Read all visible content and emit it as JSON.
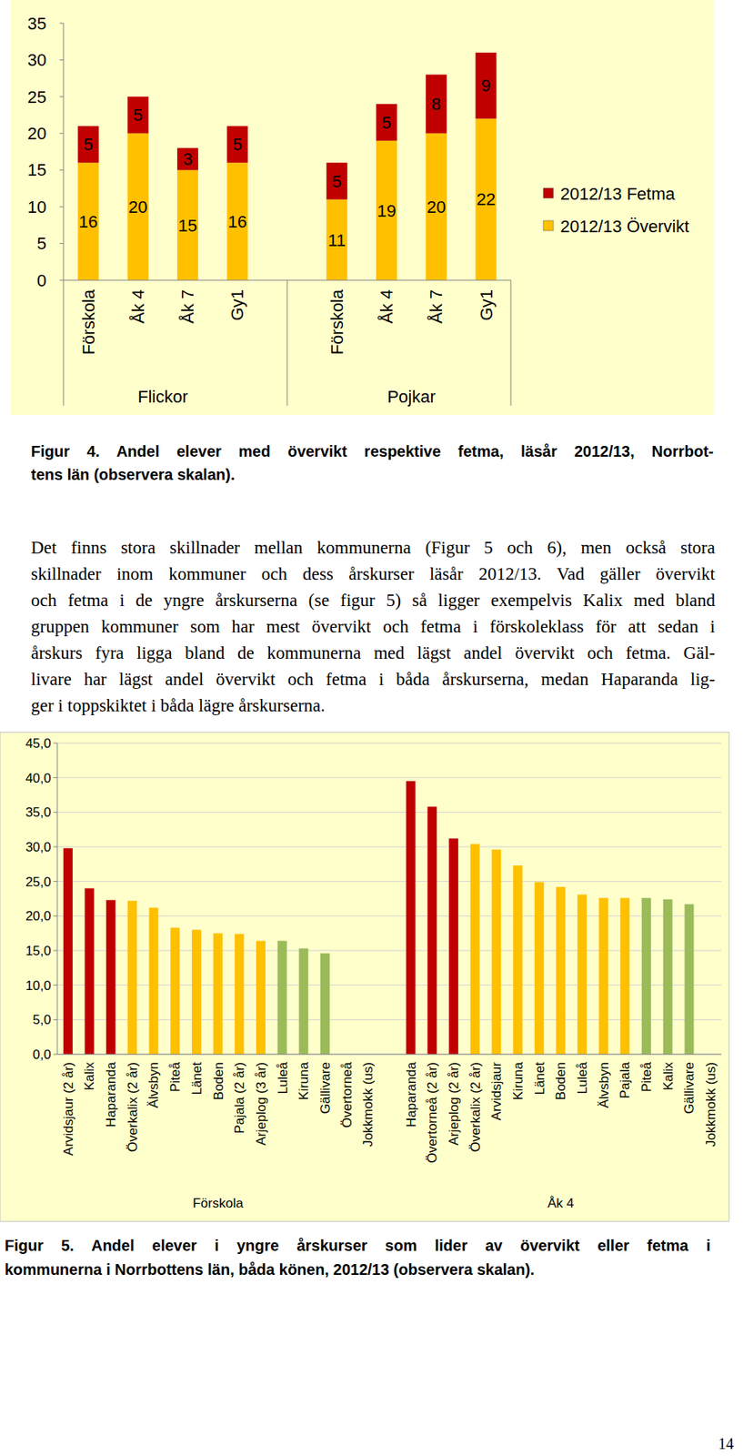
{
  "chart_data": [
    {
      "type": "bar",
      "stacked": true,
      "data_labels": true,
      "legend": "right",
      "grid": false,
      "categories": [
        "Förskola",
        "Åk 4",
        "Åk 7",
        "Gy1",
        null,
        "Förskola",
        "Åk 4",
        "Åk 7",
        "Gy1"
      ],
      "category_groups": [
        "Flickor",
        "Pojkar"
      ],
      "series": [
        {
          "name": "2012/13 Övervikt",
          "color": "#FFC000",
          "values": [
            16,
            20,
            15,
            16,
            null,
            11,
            19,
            20,
            22
          ]
        },
        {
          "name": "2012/13 Fetma",
          "color": "#C00000",
          "values": [
            5,
            5,
            3,
            5,
            null,
            5,
            5,
            8,
            9
          ]
        }
      ],
      "ylim": [
        0,
        35
      ],
      "yticks": [
        0,
        5,
        10,
        15,
        20,
        25,
        30,
        35
      ]
    },
    {
      "type": "bar",
      "grid": true,
      "categories": [
        "Arvidsjaur (2 år)",
        "Kalix",
        "Haparanda",
        "Överkalix (2 år)",
        "Älvsbyn",
        "Piteå",
        "Länet",
        "Boden",
        "Pajala (2 år)",
        "Arjeplog (3 år)",
        "Luleå",
        "Kiruna",
        "Gällivare",
        "Övertorneå",
        "Jokkmokk (us)",
        null,
        "Haparanda",
        "Övertorneå (2 år)",
        "Arjeplog (2 år)",
        "Överkalix (2 år)",
        "Arvidsjaur",
        "Kiruna",
        "Länet",
        "Boden",
        "Luleå",
        "Älvsbyn",
        "Pajala",
        "Piteå",
        "Kalix",
        "Gällivare",
        "Jokkmokk (us)"
      ],
      "category_groups": [
        "Förskola",
        "Åk 4"
      ],
      "values": [
        29.8,
        24.0,
        22.3,
        22.2,
        21.2,
        18.3,
        18.0,
        17.5,
        17.4,
        16.4,
        16.4,
        15.3,
        14.6,
        null,
        null,
        null,
        39.5,
        35.8,
        31.2,
        30.4,
        29.6,
        27.3,
        24.9,
        24.2,
        23.1,
        22.6,
        22.6,
        22.6,
        22.4,
        21.7,
        null
      ],
      "colors": [
        "#C00000",
        "#C00000",
        "#C00000",
        "#FFC000",
        "#FFC000",
        "#FFC000",
        "#FFC000",
        "#FFC000",
        "#FFC000",
        "#FFC000",
        "#9BBB59",
        "#9BBB59",
        "#9BBB59",
        null,
        null,
        null,
        "#C00000",
        "#C00000",
        "#C00000",
        "#FFC000",
        "#FFC000",
        "#FFC000",
        "#FFC000",
        "#FFC000",
        "#FFC000",
        "#FFC000",
        "#FFC000",
        "#9BBB59",
        "#9BBB59",
        "#9BBB59",
        null
      ],
      "ylim": [
        0,
        45
      ],
      "yticks": [
        {
          "value": 0,
          "label": "0,0"
        },
        {
          "value": 5,
          "label": "5,0"
        },
        {
          "value": 10,
          "label": "10,0"
        },
        {
          "value": 15,
          "label": "15,0"
        },
        {
          "value": 20,
          "label": "20,0"
        },
        {
          "value": 25,
          "label": "25,0"
        },
        {
          "value": 30,
          "label": "30,0"
        },
        {
          "value": 35,
          "label": "35,0"
        },
        {
          "value": 40,
          "label": "40,0"
        },
        {
          "value": 45,
          "label": "45,0"
        }
      ]
    }
  ],
  "document": {
    "captions": [
      [
        "Figur 4. Andel elever med övervikt respektive fetma, läsår 2012/13, Norrbot-",
        "tens län (observera skalan)."
      ],
      [
        "Figur 5. Andel elever i yngre årskurser som lider av övervikt eller fetma i",
        "kommunerna i Norrbottens län, båda könen, 2012/13 (observera skalan)."
      ]
    ],
    "paragraph": [
      "Det finns stora skillnader mellan kommunerna (Figur 5 och 6), men också stora",
      "skillnader inom kommuner och dess årskurser läsår 2012/13. Vad gäller övervikt",
      "och fetma i de yngre årskurserna (se figur 5) så ligger exempelvis Kalix med bland",
      "gruppen kommuner som har mest övervikt och fetma i förskoleklass för att sedan i",
      "årskurs fyra ligga bland de kommunerna med lägst andel övervikt och fetma. Gäl-",
      "livare har lägst andel övervikt och fetma i båda årskurserna, medan Haparanda lig-",
      "ger i toppskiktet i båda lägre årskurserna."
    ],
    "page_number": 14
  }
}
